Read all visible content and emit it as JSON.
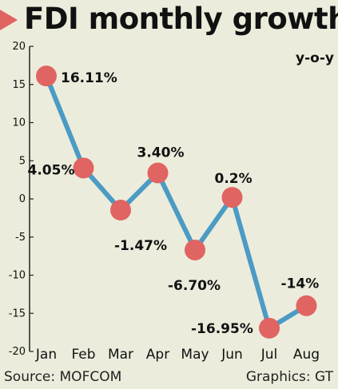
{
  "chart_data": {
    "type": "line",
    "title": "FDI monthly growth",
    "unit_label": "y-o-y",
    "categories": [
      "Jan",
      "Feb",
      "Mar",
      "Apr",
      "May",
      "Jun",
      "Jul",
      "Aug"
    ],
    "series": [
      {
        "values": [
          16.11,
          4.05,
          -1.47,
          3.4,
          -6.7,
          0.2,
          -16.95,
          -14
        ],
        "labels": [
          "16.11%",
          "4.05%",
          "-1.47%",
          "3.40%",
          "-6.70%",
          "0.2%",
          "-16.95%",
          "-14%"
        ]
      }
    ],
    "y_ticks": [
      20,
      15,
      10,
      5,
      0,
      -5,
      -10,
      -15,
      -20
    ],
    "ylim": [
      -20,
      20
    ],
    "grid": false,
    "line_color": "#4b9bc4",
    "marker_color": "#e06462",
    "title_arrow_color": "#e06462",
    "background_color": "#ececdc"
  },
  "footer": {
    "source": "Source: MOFCOM",
    "credit": "Graphics: GT"
  }
}
